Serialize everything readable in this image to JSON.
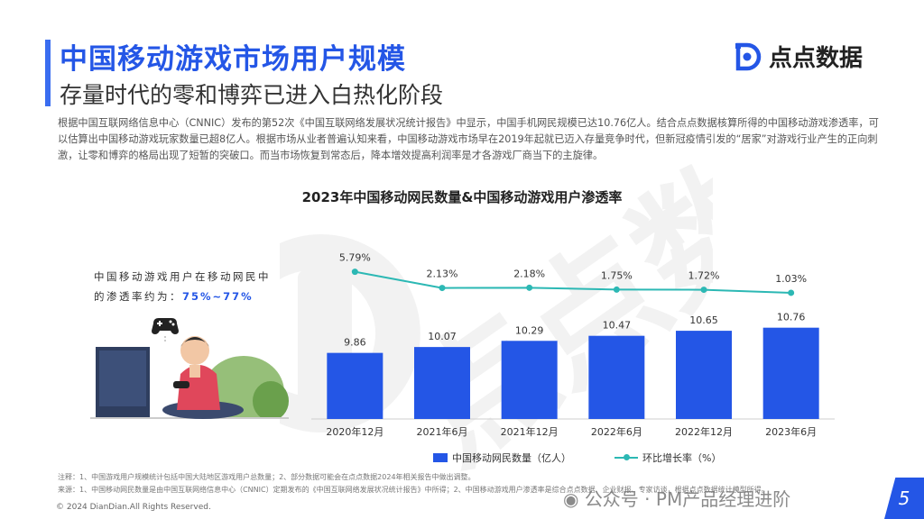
{
  "header": {
    "title": "中国移动游戏市场用户规模",
    "subtitle": "存量时代的零和博弈已进入白热化阶段"
  },
  "brand": {
    "name": "点点数据",
    "accent": "#2456e6",
    "line_color": "#2cb8b4"
  },
  "intro": {
    "text": "根据中国互联网络信息中心（CNNIC）发布的第52次《中国互联网络发展状况统计报告》中显示，中国手机网民规模已达10.76亿人。结合点点数据核算所得的中国移动游戏渗透率，可以估算出中国移动游戏玩家数量已超8亿人。根据市场从业者普遍认知来看，中国移动游戏市场早在2019年起就已迈入存量竞争时代，但新冠疫情引发的“居家”对游戏行业产生的正向刺激，让零和博弈的格局出现了短暂的突破口。而当市场恢复到常态后，降本增效提高利润率是才各游戏厂商当下的主旋律。"
  },
  "note": {
    "line1": "中国移动游戏用户在移动网民中",
    "line2_prefix": "的渗透率约为：",
    "line2_highlight": "75%~77%"
  },
  "chart_data": {
    "type": "bar",
    "title": "2023年中国移动网民数量&中国移动游戏用户渗透率",
    "categories": [
      "2020年12月",
      "2021年6月",
      "2021年12月",
      "2022年6月",
      "2022年12月",
      "2023年6月"
    ],
    "series": [
      {
        "name": "中国移动网民数量（亿人）",
        "type": "bar",
        "values": [
          9.86,
          10.07,
          10.29,
          10.47,
          10.65,
          10.76
        ]
      },
      {
        "name": "环比增长率（%）",
        "type": "line",
        "values": [
          5.79,
          2.13,
          2.18,
          1.75,
          1.72,
          1.03
        ]
      }
    ],
    "value_labels": [
      "9.86",
      "10.07",
      "10.29",
      "10.47",
      "10.65",
      "10.76"
    ],
    "rate_labels": [
      "5.79%",
      "2.13%",
      "2.18%",
      "1.75%",
      "1.72%",
      "1.03%"
    ],
    "grid": false,
    "legend_position": "bottom"
  },
  "footnotes": {
    "note": "注释：1、中国游戏用户规模统计包括中国大陆地区游戏用户总数量；2、部分数据可能会在点点数据2024年相关报告中做出调整。",
    "source": "来源：1、中国移动网民数量是由中国互联网络信息中心（CNNIC）定期发布的《中国互联网络发展状况统计报告》中所得；2、中国移动游戏用户渗透率是综合点点数据、企业财报、专家访谈，根据点点数据统计模型所得。"
  },
  "copyright": "© 2024 DianDian.All Rights Reserved.",
  "watermark": "公众号 · PM产品经理进阶",
  "page_number": "5"
}
